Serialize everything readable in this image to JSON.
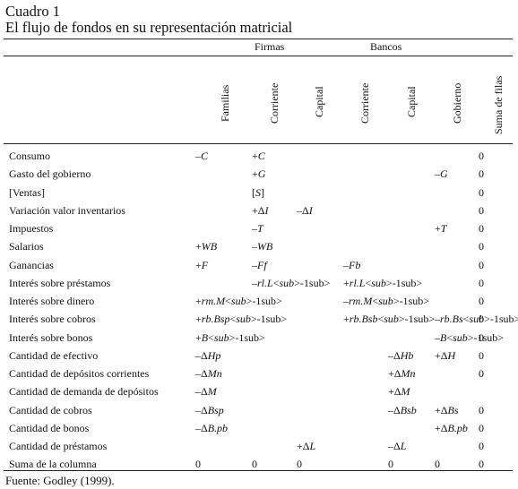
{
  "caption": {
    "number": "Cuadro 1",
    "title": "El flujo de fondos en su representación matricial"
  },
  "column_groups": {
    "firmas": "Firmas",
    "bancos": "Bancos"
  },
  "columns": [
    "Familias",
    "Corriente",
    "Capital",
    "Corriente",
    "Capital",
    "Gobierno",
    "Suma de filas"
  ],
  "rows": [
    {
      "label": "Consumo",
      "cells": [
        "–C",
        "+C",
        "",
        "",
        "",
        "",
        "0"
      ]
    },
    {
      "label": "Gasto del gobierno",
      "cells": [
        "",
        "+G",
        "",
        "",
        "",
        "–G",
        "0"
      ]
    },
    {
      "label": "[Ventas]",
      "cells": [
        "",
        "[S]",
        "",
        "",
        "",
        "",
        "0"
      ]
    },
    {
      "label": "Variación valor inventarios",
      "cells": [
        "",
        "+ΔI",
        "–ΔI",
        "",
        "",
        "",
        "0"
      ]
    },
    {
      "label": "Impuestos",
      "cells": [
        "",
        "–T",
        "",
        "",
        "",
        "+T",
        "0"
      ]
    },
    {
      "label": "Salarios",
      "cells": [
        "+WB",
        "–WB",
        "",
        "",
        "",
        "",
        "0"
      ]
    },
    {
      "label": "Ganancias",
      "cells": [
        "+F",
        "–Ff",
        "",
        "–Fb",
        "",
        "",
        "0"
      ]
    },
    {
      "label": "Interés sobre préstamos",
      "cells": [
        "",
        "–rl.L-1",
        "",
        "+rl.L-1",
        "",
        "",
        "0"
      ]
    },
    {
      "label": "Interés sobre dinero",
      "cells": [
        "+rm.M-1",
        "",
        "",
        "–rm.M-1",
        "",
        "",
        "0"
      ]
    },
    {
      "label": "Interés sobre cobros",
      "cells": [
        "+rb.Bsp-1",
        "",
        "",
        "+rb.Bsb-1",
        "",
        "–rb.Bs-1",
        "0"
      ]
    },
    {
      "label": "Interés sobre bonos",
      "cells": [
        "+B-1",
        "",
        "",
        "",
        "",
        "–B-1",
        "0"
      ]
    },
    {
      "label": "Cantidad de efectivo",
      "cells": [
        "–ΔHp",
        "",
        "",
        "",
        "–ΔHb",
        "+ΔH",
        "0"
      ]
    },
    {
      "label": "Cantidad de depósitos corrientes",
      "cells": [
        "–ΔMn",
        "",
        "",
        "",
        "+ΔMn",
        "",
        "0"
      ]
    },
    {
      "label": "Cantidad de demanda de depósitos",
      "cells": [
        "–ΔM",
        "",
        "",
        "",
        "+ΔM",
        "",
        ""
      ]
    },
    {
      "label": "Cantidad de cobros",
      "cells": [
        "–ΔBsp",
        "",
        "",
        "",
        "–ΔBsb",
        "+ΔBs",
        "0"
      ]
    },
    {
      "label": "Cantidad de bonos",
      "cells": [
        "–ΔB.pb",
        "",
        "",
        "",
        "",
        "+ΔB.pb",
        "0"
      ]
    },
    {
      "label": "Cantidad de préstamos",
      "cells": [
        "",
        "",
        "+ΔL",
        "",
        "–ΔL",
        "",
        "0"
      ]
    },
    {
      "label": "Suma de la columna",
      "cells": [
        "0",
        "0",
        "0",
        "",
        "0",
        "0",
        "0"
      ]
    }
  ],
  "source": "Fuente: Godley (1999)."
}
